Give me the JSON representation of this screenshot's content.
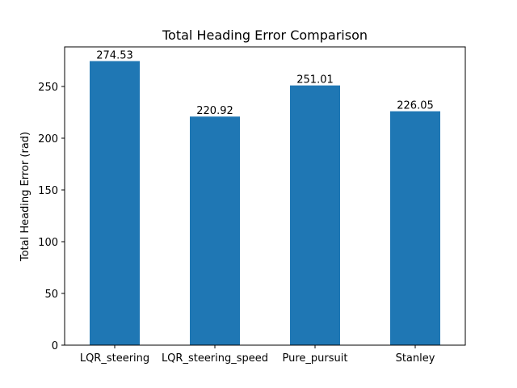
{
  "chart_data": {
    "type": "bar",
    "title": "Total Heading Error Comparison",
    "xlabel": "",
    "ylabel": "Total Heading Error (rad)",
    "categories": [
      "LQR_steering",
      "LQR_steering_speed",
      "Pure_pursuit",
      "Stanley"
    ],
    "values": [
      274.53,
      220.92,
      251.01,
      226.05
    ],
    "data_labels": [
      "274.53",
      "220.92",
      "251.01",
      "226.05"
    ],
    "ylim": [
      0,
      288.26
    ],
    "yticks": [
      0,
      50,
      100,
      150,
      200,
      250
    ],
    "grid": false,
    "bar_color": "#1f77b4"
  }
}
